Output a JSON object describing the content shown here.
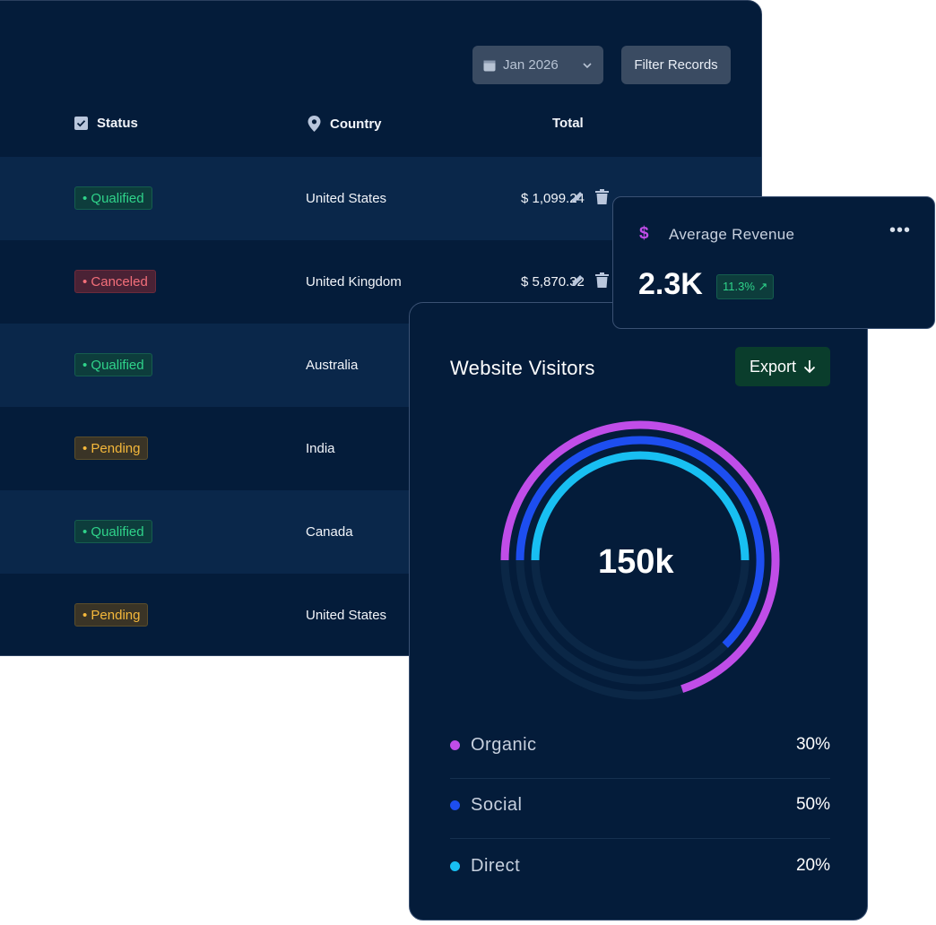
{
  "table": {
    "date_picker": {
      "label": "Jan 2026",
      "icon": "calendar-icon"
    },
    "filter_label": "Filter Records",
    "headers": {
      "status": "Status",
      "country": "Country",
      "total": "Total"
    },
    "rows": [
      {
        "status": "Qualified",
        "status_type": "qualified",
        "country": "United States",
        "total": "$ 1,099.24"
      },
      {
        "status": "Canceled",
        "status_type": "canceled",
        "country": "United Kingdom",
        "total": "$ 5,870.32"
      },
      {
        "status": "Qualified",
        "status_type": "qualified",
        "country": "Australia",
        "total": ""
      },
      {
        "status": "Pending",
        "status_type": "pending",
        "country": "India",
        "total": ""
      },
      {
        "status": "Qualified",
        "status_type": "qualified",
        "country": "Canada",
        "total": ""
      },
      {
        "status": "Pending",
        "status_type": "pending",
        "country": "United States",
        "total": ""
      }
    ]
  },
  "revenue": {
    "icon": "dollar-icon",
    "dollar_glyph": "$",
    "title": "Average Revenue",
    "value": "2.3K",
    "change": "11.3% ↗",
    "more_glyph": "•••"
  },
  "visitors": {
    "title": "Website Visitors",
    "export_label": "Export",
    "total": "150k",
    "segments": [
      {
        "name": "Organic",
        "pct": "30%",
        "color": "#c04de8"
      },
      {
        "name": "Social",
        "pct": "50%",
        "color": "#1d4ef0"
      },
      {
        "name": "Direct",
        "pct": "20%",
        "color": "#18bff2"
      }
    ]
  }
}
